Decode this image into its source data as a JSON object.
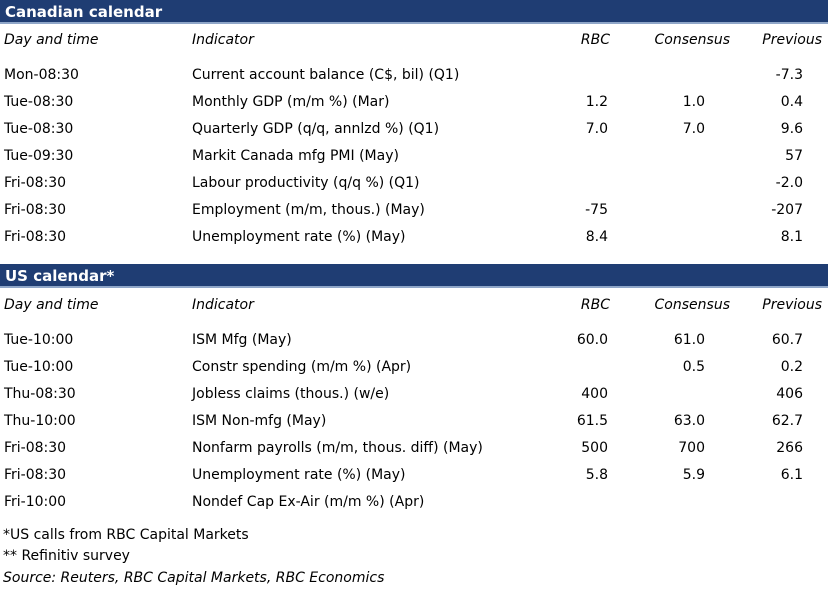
{
  "canadian": {
    "title": "Canadian calendar",
    "headers": {
      "day": "Day and time",
      "indicator": "Indicator",
      "rbc": "RBC",
      "consensus": "Consensus",
      "previous": "Previous"
    },
    "rows": [
      {
        "day": "Mon-08:30",
        "indicator": "Current account balance (C$, bil) (Q1)",
        "rbc": "",
        "consensus": "",
        "previous": "-7.3"
      },
      {
        "day": "Tue-08:30",
        "indicator": "Monthly GDP (m/m %) (Mar)",
        "rbc": "1.2",
        "consensus": "1.0",
        "previous": "0.4"
      },
      {
        "day": "Tue-08:30",
        "indicator": "Quarterly GDP (q/q, annlzd %) (Q1)",
        "rbc": "7.0",
        "consensus": "7.0",
        "previous": "9.6"
      },
      {
        "day": "Tue-09:30",
        "indicator": "Markit Canada mfg PMI (May)",
        "rbc": "",
        "consensus": "",
        "previous": "57"
      },
      {
        "day": "Fri-08:30",
        "indicator": "Labour productivity (q/q %) (Q1)",
        "rbc": "",
        "consensus": "",
        "previous": "-2.0"
      },
      {
        "day": "Fri-08:30",
        "indicator": "Employment (m/m, thous.) (May)",
        "rbc": "-75",
        "consensus": "",
        "previous": "-207"
      },
      {
        "day": "Fri-08:30",
        "indicator": "Unemployment rate (%) (May)",
        "rbc": "8.4",
        "consensus": "",
        "previous": "8.1"
      }
    ]
  },
  "us": {
    "title": "US calendar*",
    "headers": {
      "day": "Day and time",
      "indicator": "Indicator",
      "rbc": "RBC",
      "consensus": "Consensus",
      "previous": "Previous"
    },
    "rows": [
      {
        "day": "Tue-10:00",
        "indicator": "ISM Mfg (May)",
        "rbc": "60.0",
        "consensus": "61.0",
        "previous": "60.7"
      },
      {
        "day": "Tue-10:00",
        "indicator": "Constr spending (m/m %) (Apr)",
        "rbc": "",
        "consensus": "0.5",
        "previous": "0.2"
      },
      {
        "day": "Thu-08:30",
        "indicator": "Jobless claims (thous.) (w/e)",
        "rbc": "400",
        "consensus": "",
        "previous": "406"
      },
      {
        "day": "Thu-10:00",
        "indicator": "ISM Non-mfg (May)",
        "rbc": "61.5",
        "consensus": "63.0",
        "previous": "62.7"
      },
      {
        "day": "Fri-08:30",
        "indicator": "Nonfarm payrolls (m/m, thous. diff) (May)",
        "rbc": "500",
        "consensus": "700",
        "previous": "266"
      },
      {
        "day": "Fri-08:30",
        "indicator": "Unemployment rate (%) (May)",
        "rbc": "5.8",
        "consensus": "5.9",
        "previous": "6.1"
      },
      {
        "day": "Fri-10:00",
        "indicator": "Nondef Cap Ex-Air (m/m %) (Apr)",
        "rbc": "",
        "consensus": "",
        "previous": ""
      }
    ]
  },
  "footnotes": {
    "us_calls": "*US calls from RBC Capital Markets",
    "survey": "** Refinitiv survey",
    "source": "Source: Reuters, RBC Capital Markets, RBC Economics"
  },
  "colors": {
    "banner": "#1f3d73",
    "banner_text": "#ffffff"
  }
}
